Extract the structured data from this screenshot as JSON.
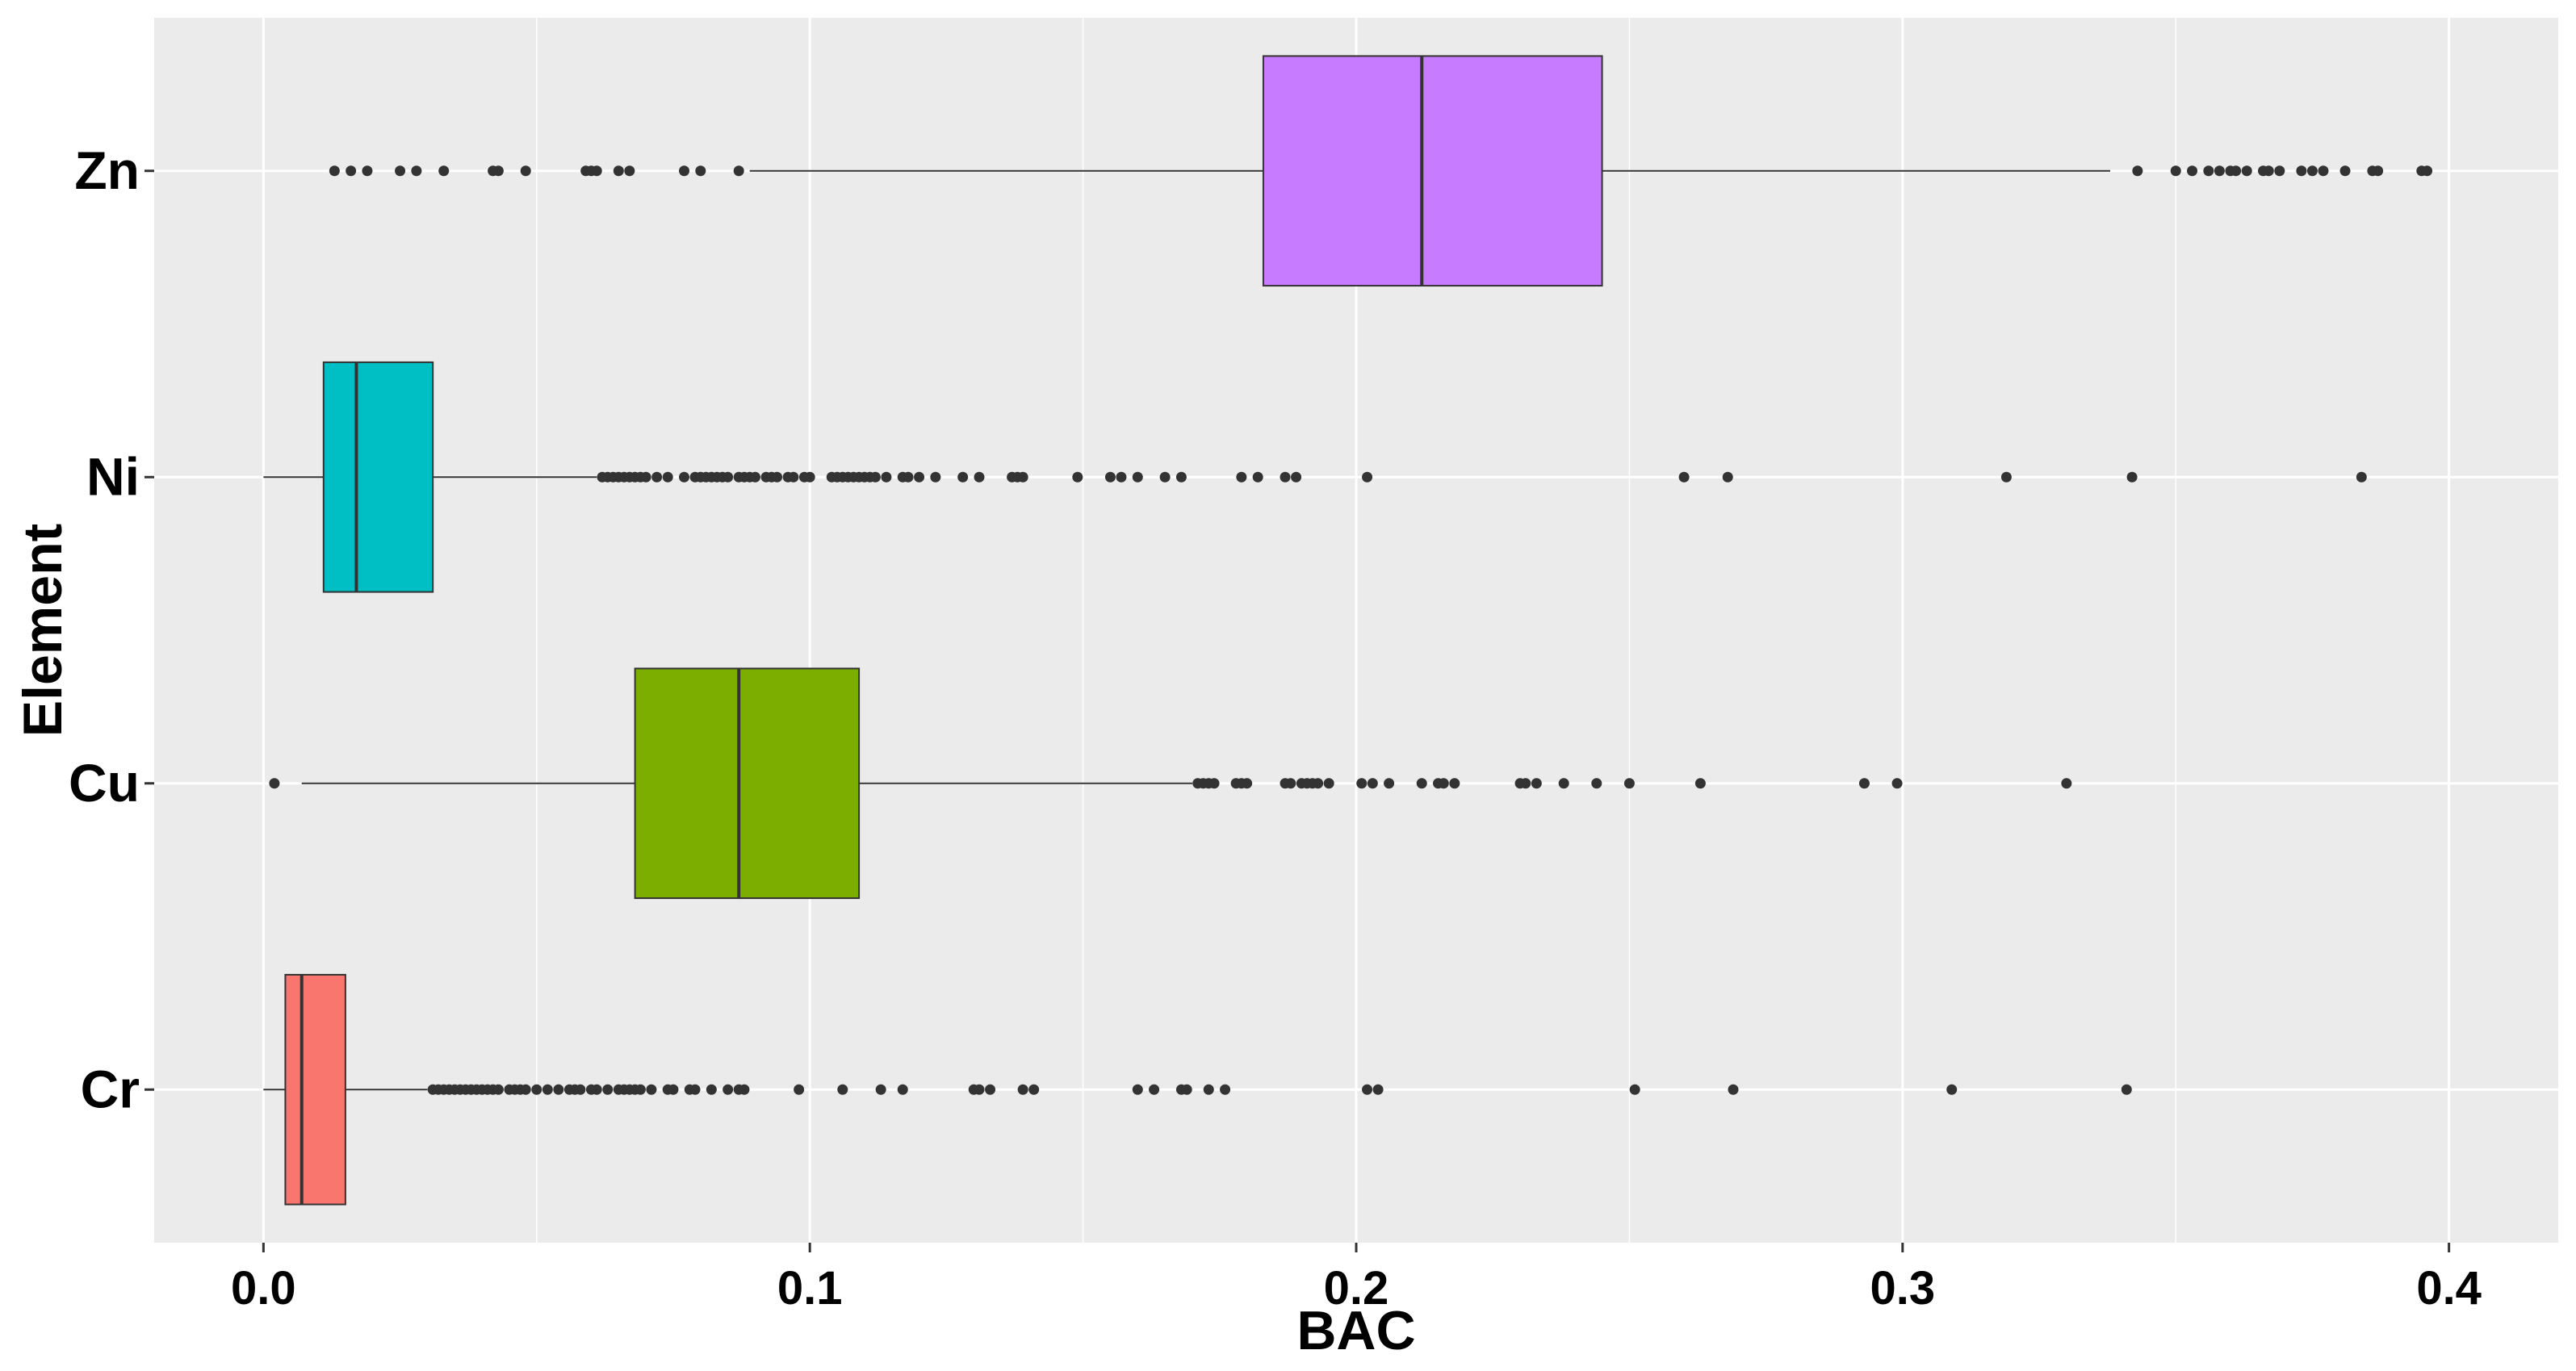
{
  "chart_data": {
    "type": "boxplot",
    "orientation": "horizontal",
    "xlabel": "BAC",
    "ylabel": "Element",
    "xlim": [
      -0.02,
      0.42
    ],
    "x_ticks": [
      0.0,
      0.1,
      0.2,
      0.3,
      0.4
    ],
    "x_tick_labels": [
      "0.0",
      "0.1",
      "0.2",
      "0.3",
      "0.4"
    ],
    "categories": [
      "Cr",
      "Cu",
      "Ni",
      "Zn"
    ],
    "grid": true,
    "legend": "none",
    "colors": {
      "panel_background": "#EBEBEB",
      "grid_line": "#FFFFFF",
      "box_outline": "#333333",
      "outlier": "#333333"
    },
    "series": [
      {
        "category": "Zn",
        "color": "#C77CFF",
        "whisker_low": 0.089,
        "q1": 0.183,
        "median": 0.212,
        "q3": 0.245,
        "whisker_high": 0.338,
        "outliers": [
          0.013,
          0.016,
          0.019,
          0.025,
          0.028,
          0.033,
          0.042,
          0.043,
          0.048,
          0.059,
          0.06,
          0.061,
          0.065,
          0.067,
          0.077,
          0.08,
          0.087,
          0.343,
          0.35,
          0.353,
          0.356,
          0.358,
          0.36,
          0.361,
          0.363,
          0.366,
          0.367,
          0.369,
          0.373,
          0.375,
          0.377,
          0.381,
          0.386,
          0.387,
          0.395,
          0.396
        ]
      },
      {
        "category": "Ni",
        "color": "#00BFC4",
        "whisker_low": 0.0,
        "q1": 0.011,
        "median": 0.017,
        "q3": 0.031,
        "whisker_high": 0.061,
        "outliers": [
          0.062,
          0.063,
          0.064,
          0.065,
          0.066,
          0.067,
          0.068,
          0.069,
          0.07,
          0.072,
          0.074,
          0.077,
          0.079,
          0.08,
          0.081,
          0.082,
          0.083,
          0.084,
          0.085,
          0.087,
          0.088,
          0.089,
          0.09,
          0.092,
          0.093,
          0.094,
          0.096,
          0.097,
          0.099,
          0.1,
          0.104,
          0.105,
          0.106,
          0.107,
          0.108,
          0.109,
          0.11,
          0.111,
          0.112,
          0.114,
          0.117,
          0.118,
          0.12,
          0.123,
          0.128,
          0.131,
          0.137,
          0.138,
          0.139,
          0.149,
          0.155,
          0.157,
          0.16,
          0.165,
          0.168,
          0.179,
          0.182,
          0.187,
          0.189,
          0.202,
          0.26,
          0.268,
          0.319,
          0.342,
          0.384
        ]
      },
      {
        "category": "Cu",
        "color": "#7CAE00",
        "whisker_low": 0.007,
        "q1": 0.068,
        "median": 0.087,
        "q3": 0.109,
        "whisker_high": 0.17,
        "outliers": [
          0.002,
          0.171,
          0.172,
          0.173,
          0.174,
          0.178,
          0.179,
          0.18,
          0.187,
          0.188,
          0.19,
          0.191,
          0.192,
          0.193,
          0.195,
          0.201,
          0.203,
          0.206,
          0.212,
          0.215,
          0.216,
          0.218,
          0.23,
          0.231,
          0.233,
          0.238,
          0.244,
          0.25,
          0.263,
          0.293,
          0.299,
          0.33
        ]
      },
      {
        "category": "Cr",
        "color": "#F8766D",
        "whisker_low": 0.0,
        "q1": 0.004,
        "median": 0.007,
        "q3": 0.015,
        "whisker_high": 0.03,
        "outliers": [
          0.031,
          0.032,
          0.033,
          0.034,
          0.035,
          0.036,
          0.037,
          0.038,
          0.039,
          0.04,
          0.041,
          0.042,
          0.043,
          0.045,
          0.046,
          0.047,
          0.048,
          0.05,
          0.052,
          0.054,
          0.056,
          0.057,
          0.058,
          0.06,
          0.061,
          0.063,
          0.065,
          0.066,
          0.067,
          0.068,
          0.069,
          0.071,
          0.074,
          0.075,
          0.078,
          0.079,
          0.082,
          0.085,
          0.087,
          0.088,
          0.098,
          0.106,
          0.113,
          0.117,
          0.13,
          0.131,
          0.133,
          0.139,
          0.141,
          0.16,
          0.163,
          0.168,
          0.169,
          0.173,
          0.176,
          0.202,
          0.204,
          0.251,
          0.269,
          0.309,
          0.341
        ]
      }
    ]
  }
}
